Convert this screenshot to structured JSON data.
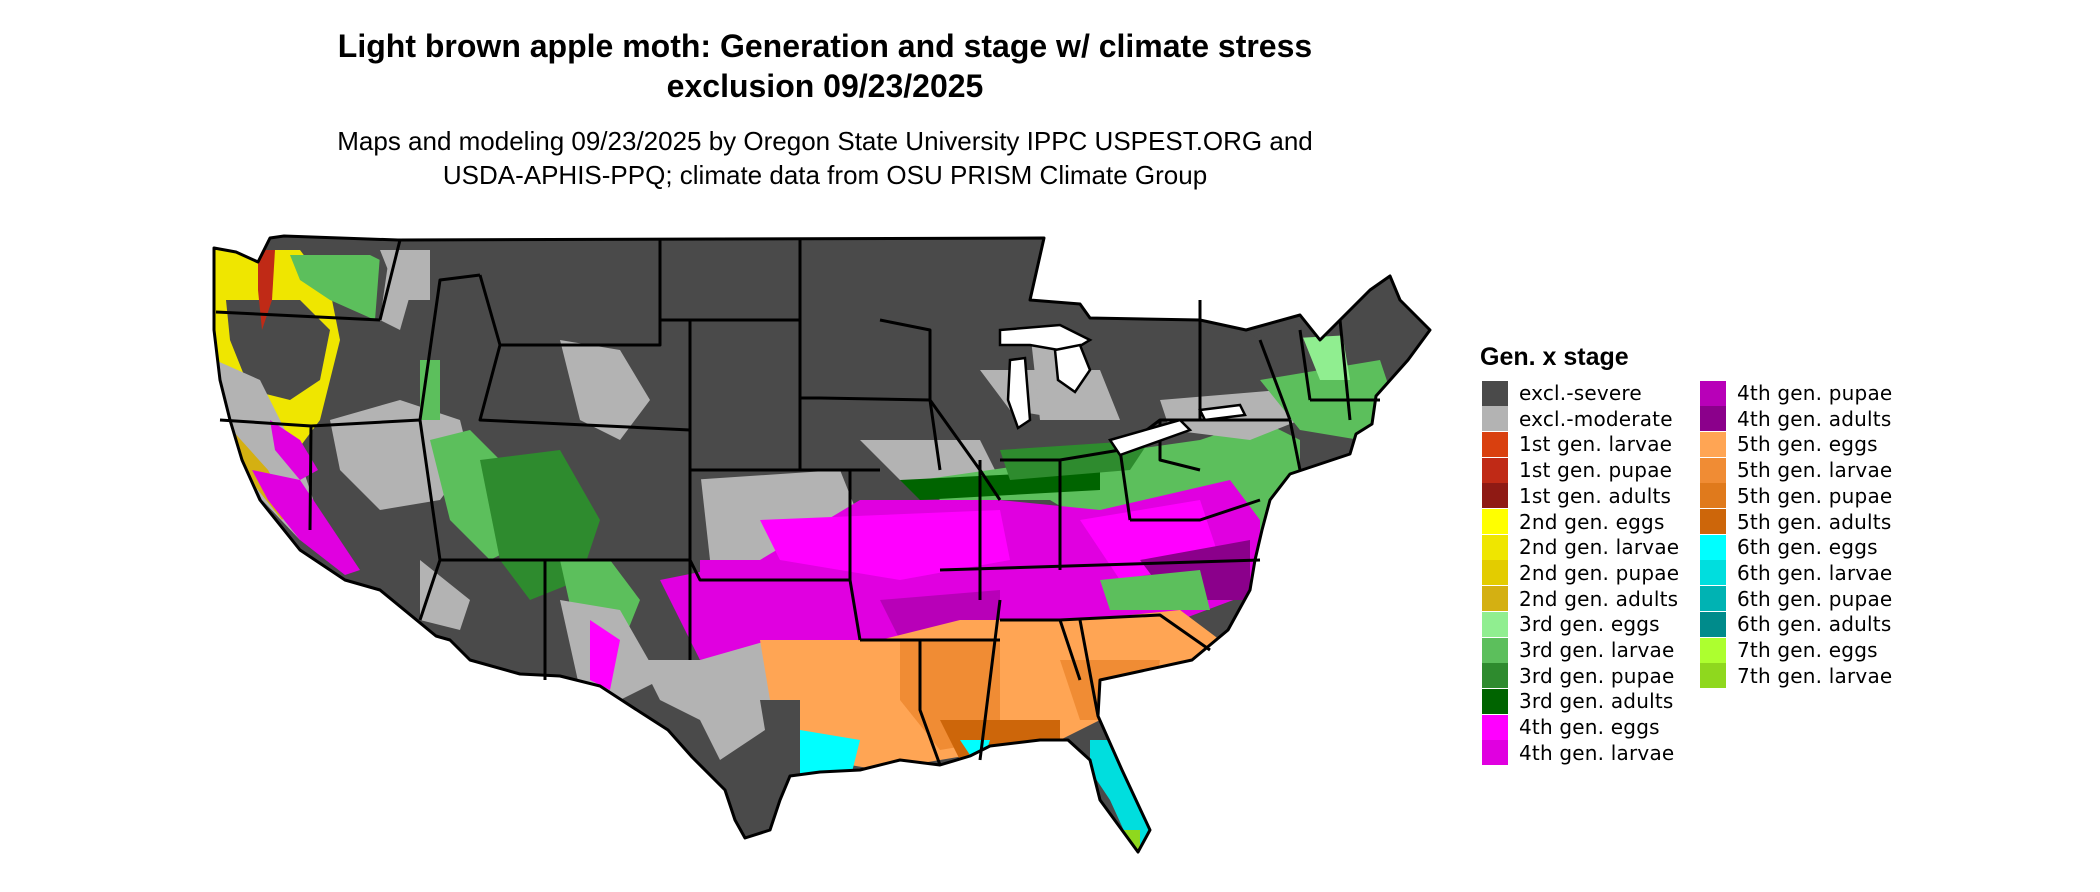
{
  "header": {
    "title_line1": "Light brown apple moth: Generation and stage w/ climate stress",
    "title_line2": "exclusion 09/23/2025",
    "subtitle_line1": "Maps and modeling 09/23/2025 by Oregon State University IPPC USPEST.ORG and",
    "subtitle_line2": "USDA-APHIS-PPQ; climate data from OSU PRISM Climate Group"
  },
  "legend": {
    "title": "Gen. x stage",
    "items": [
      {
        "label": "excl.-severe",
        "color": "#4a4a4a"
      },
      {
        "label": "excl.-moderate",
        "color": "#b3b3b3"
      },
      {
        "label": "1st gen. larvae",
        "color": "#d9400f"
      },
      {
        "label": "1st gen. pupae",
        "color": "#c02a16"
      },
      {
        "label": "1st gen. adults",
        "color": "#8f1a14"
      },
      {
        "label": "2nd gen. eggs",
        "color": "#ffff00"
      },
      {
        "label": "2nd gen. larvae",
        "color": "#efe600"
      },
      {
        "label": "2nd gen. pupae",
        "color": "#e3cc00"
      },
      {
        "label": "2nd gen. adults",
        "color": "#d4b012"
      },
      {
        "label": "3rd gen. eggs",
        "color": "#90ee90"
      },
      {
        "label": "3rd gen. larvae",
        "color": "#5cbf5c"
      },
      {
        "label": "3rd gen. pupae",
        "color": "#2e8b2e"
      },
      {
        "label": "3rd gen. adults",
        "color": "#006400"
      },
      {
        "label": "4th gen. eggs",
        "color": "#ff00ff"
      },
      {
        "label": "4th gen. larvae",
        "color": "#e000e0"
      },
      {
        "label": "4th gen. pupae",
        "color": "#b800b8"
      },
      {
        "label": "4th gen. adults",
        "color": "#8b008b"
      },
      {
        "label": "5th gen. eggs",
        "color": "#ffa554"
      },
      {
        "label": "5th gen. larvae",
        "color": "#f08c34"
      },
      {
        "label": "5th gen. pupae",
        "color": "#e07a1c"
      },
      {
        "label": "5th gen. adults",
        "color": "#cd660a"
      },
      {
        "label": "6th gen. eggs",
        "color": "#00ffff"
      },
      {
        "label": "6th gen. larvae",
        "color": "#00dede"
      },
      {
        "label": "6th gen. pupae",
        "color": "#00b3b3"
      },
      {
        "label": "6th gen. adults",
        "color": "#008b8b"
      },
      {
        "label": "7th gen. eggs",
        "color": "#adff2f"
      },
      {
        "label": "7th gen. larvae",
        "color": "#8fd81e"
      }
    ]
  }
}
